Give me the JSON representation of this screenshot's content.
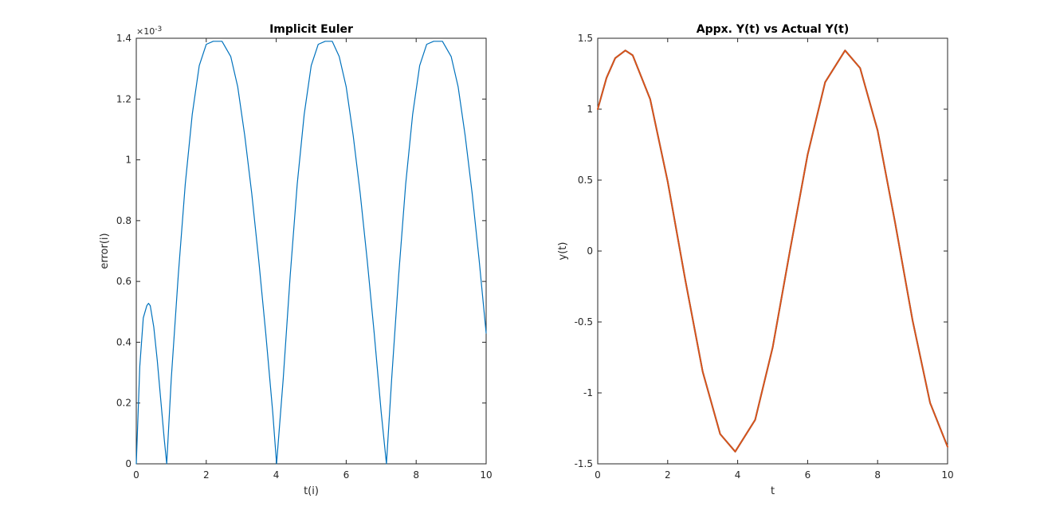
{
  "chart_data": [
    {
      "type": "line",
      "title": "Implicit Euler",
      "xlabel": "t(i)",
      "ylabel": "error(i)",
      "xlim": [
        0,
        10
      ],
      "ylim": [
        0,
        0.0014
      ],
      "x_ticks": [
        0,
        2,
        4,
        6,
        8,
        10
      ],
      "x_tick_labels": [
        "0",
        "2",
        "4",
        "6",
        "8",
        "10"
      ],
      "y_ticks": [
        0,
        0.0002,
        0.0004,
        0.0006,
        0.0008,
        0.001,
        0.0012,
        0.0014
      ],
      "y_tick_labels": [
        "0",
        "0.2",
        "0.4",
        "0.6",
        "0.8",
        "1",
        "1.2",
        "1.4"
      ],
      "y_exponent_label": "×10",
      "y_exponent_power": "-3",
      "grid": false,
      "series": [
        {
          "color": "#0072BD",
          "x": [
            0,
            0.1,
            0.2,
            0.3,
            0.35,
            0.4,
            0.5,
            0.6,
            0.7,
            0.8,
            0.87,
            1.0,
            1.2,
            1.4,
            1.6,
            1.8,
            2.0,
            2.2,
            2.45,
            2.7,
            2.9,
            3.1,
            3.3,
            3.5,
            3.7,
            3.9,
            4.01,
            4.2,
            4.4,
            4.6,
            4.8,
            5.0,
            5.2,
            5.4,
            5.6,
            5.8,
            6.0,
            6.2,
            6.4,
            6.6,
            6.8,
            7.0,
            7.15,
            7.3,
            7.5,
            7.7,
            7.9,
            8.1,
            8.3,
            8.5,
            8.75,
            9.0,
            9.2,
            9.4,
            9.6,
            9.8,
            10.0
          ],
          "y": [
            0,
            0.00032,
            0.00048,
            0.00052,
            0.000528,
            0.00052,
            0.00045,
            0.00034,
            0.00021,
            8e-05,
            0,
            0.00028,
            0.00062,
            0.00092,
            0.00115,
            0.00131,
            0.00138,
            0.00139,
            0.00139,
            0.00134,
            0.00124,
            0.00108,
            0.00089,
            0.00067,
            0.00043,
            0.00017,
            0,
            0.00028,
            0.00062,
            0.00092,
            0.00115,
            0.00131,
            0.00138,
            0.00139,
            0.00139,
            0.00134,
            0.00124,
            0.00108,
            0.00089,
            0.00067,
            0.00043,
            0.00017,
            0,
            0.00028,
            0.00062,
            0.00092,
            0.00115,
            0.00131,
            0.00138,
            0.00139,
            0.00139,
            0.00134,
            0.00124,
            0.00108,
            0.00089,
            0.00067,
            0.00043
          ]
        }
      ]
    },
    {
      "type": "line",
      "title": "Appx. Y(t) vs Actual Y(t)",
      "xlabel": "t",
      "ylabel": "y(t)",
      "xlim": [
        0,
        10
      ],
      "ylim": [
        -1.5,
        1.5
      ],
      "x_ticks": [
        0,
        2,
        4,
        6,
        8,
        10
      ],
      "x_tick_labels": [
        "0",
        "2",
        "4",
        "6",
        "8",
        "10"
      ],
      "y_ticks": [
        -1.5,
        -1,
        -0.5,
        0,
        0.5,
        1,
        1.5
      ],
      "y_tick_labels": [
        "-1.5",
        "-1",
        "-0.5",
        "0",
        "0.5",
        "1",
        "1.5"
      ],
      "grid": false,
      "series": [
        {
          "color": "#0072BD",
          "x": [
            0,
            0.25,
            0.5,
            0.79,
            1.0,
            1.5,
            2.0,
            2.5,
            3.0,
            3.5,
            3.93,
            4.5,
            5.0,
            5.5,
            6.0,
            6.5,
            7.07,
            7.5,
            8.0,
            8.5,
            9.0,
            9.5,
            10.0
          ],
          "y": [
            1.0,
            1.22,
            1.36,
            1.414,
            1.38,
            1.07,
            0.49,
            -0.2,
            -0.85,
            -1.29,
            -1.414,
            -1.19,
            -0.68,
            0.01,
            0.68,
            1.19,
            1.414,
            1.29,
            0.85,
            0.2,
            -0.49,
            -1.07,
            -1.38
          ]
        },
        {
          "color": "#D95319",
          "x": [
            0,
            0.25,
            0.5,
            0.79,
            1.0,
            1.5,
            2.0,
            2.5,
            3.0,
            3.5,
            3.93,
            4.5,
            5.0,
            5.5,
            6.0,
            6.5,
            7.07,
            7.5,
            8.0,
            8.5,
            9.0,
            9.5,
            10.0
          ],
          "y": [
            1.0,
            1.22,
            1.36,
            1.414,
            1.38,
            1.07,
            0.49,
            -0.2,
            -0.85,
            -1.29,
            -1.414,
            -1.19,
            -0.68,
            0.01,
            0.68,
            1.19,
            1.414,
            1.29,
            0.85,
            0.2,
            -0.49,
            -1.07,
            -1.38
          ]
        }
      ]
    }
  ]
}
